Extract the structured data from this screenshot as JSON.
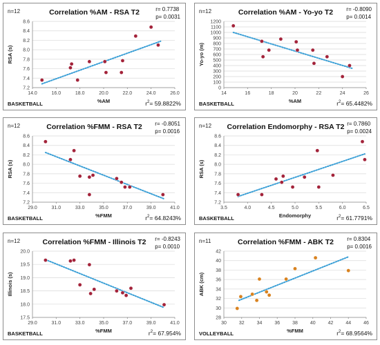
{
  "panels": [
    {
      "n_label": "n=12",
      "title": "Correlation %AM - RSA T2",
      "r_text": "r= 0.7738",
      "p_text": "p= 0.0031",
      "sport": "BASKETBALL",
      "r2_text": "59.8822%"
    },
    {
      "n_label": "n=12",
      "title": "Correlation %AM - Yo-yo T2",
      "r_text": "r= -0.8090",
      "p_text": "p= 0.0014",
      "sport": "BASKETBALL",
      "r2_text": "65.4482%"
    },
    {
      "n_label": "n=12",
      "title": "Correlation %FMM - RSA T2",
      "r_text": "r= -0.8051",
      "p_text": "p= 0.0016",
      "sport": "BASKETBALL",
      "r2_text": "64.8243%"
    },
    {
      "n_label": "n=12",
      "title": "Correlation Endomorphy - RSA T2",
      "r_text": "r= 0.7860",
      "p_text": "p= 0.0024",
      "sport": "BASKETBALL",
      "r2_text": "61.7791%"
    },
    {
      "n_label": "n=12",
      "title": "Correlation %FMM - Illinois T2",
      "r_text": "r= -0.8243",
      "p_text": "p= 0.0010",
      "sport": "BASKETBALL",
      "r2_text": "67.954%"
    },
    {
      "n_label": "n=11",
      "title": "Correlation %FMM - ABK T2",
      "r_text": "r= 0.8304",
      "p_text": "p= 0.0016",
      "sport": "VOLLEYBALL",
      "r2_text": "68.9564%"
    }
  ],
  "r2_prefix": "r",
  "r2_sup": "2",
  "r2_eq": "= ",
  "colors": {
    "basketball_points": "#a3233a",
    "volleyball_points": "#d9821f",
    "trendline": "#3a9fd6",
    "gridline": "#d9d9d9",
    "axis": "#8c8c8c"
  },
  "chart_data": [
    {
      "type": "scatter",
      "title": "Correlation %AM - RSA T2",
      "xlabel": "%AM",
      "ylabel": "RSA (s)",
      "xlim": [
        14,
        26
      ],
      "ylim": [
        7.2,
        8.6
      ],
      "xticks": [
        14,
        16,
        18,
        20,
        22,
        24,
        26
      ],
      "yticks": [
        7.2,
        7.4,
        7.6,
        7.8,
        8.0,
        8.2,
        8.4,
        8.6
      ],
      "tick_decimals": 1,
      "grid": "horizontal",
      "points": [
        [
          14.8,
          7.36
        ],
        [
          17.2,
          7.62
        ],
        [
          17.3,
          7.7
        ],
        [
          17.8,
          7.36
        ],
        [
          18.8,
          7.75
        ],
        [
          20.1,
          7.75
        ],
        [
          20.2,
          7.52
        ],
        [
          21.5,
          7.52
        ],
        [
          21.6,
          7.77
        ],
        [
          22.7,
          8.29
        ],
        [
          24.0,
          8.48
        ],
        [
          24.6,
          8.1
        ]
      ],
      "trend": [
        [
          14.8,
          7.28
        ],
        [
          24.8,
          8.18
        ]
      ],
      "point_color": "basketball_points"
    },
    {
      "type": "scatter",
      "title": "Correlation %AM - Yo-yo T2",
      "xlabel": "%AM",
      "ylabel": "Yo-yo (m)",
      "xlim": [
        14,
        26
      ],
      "ylim": [
        0,
        1200
      ],
      "xticks": [
        14,
        16,
        18,
        20,
        22,
        24,
        26
      ],
      "yticks": [
        0,
        100,
        200,
        300,
        400,
        500,
        600,
        700,
        800,
        900,
        1000,
        1100,
        1200
      ],
      "tick_decimals": 0,
      "grid": "horizontal",
      "points": [
        [
          14.8,
          1120
        ],
        [
          17.2,
          840
        ],
        [
          17.3,
          560
        ],
        [
          17.8,
          680
        ],
        [
          18.8,
          880
        ],
        [
          20.1,
          830
        ],
        [
          20.2,
          680
        ],
        [
          21.5,
          680
        ],
        [
          21.6,
          440
        ],
        [
          22.7,
          560
        ],
        [
          24.0,
          200
        ],
        [
          24.6,
          400
        ]
      ],
      "trend": [
        [
          14.8,
          1000
        ],
        [
          24.8,
          350
        ]
      ],
      "point_color": "basketball_points"
    },
    {
      "type": "scatter",
      "title": "Correlation %FMM - RSA T2",
      "xlabel": "%FMM",
      "ylabel": "RSA (s)",
      "xlim": [
        29,
        41
      ],
      "ylim": [
        7.2,
        8.6
      ],
      "xticks": [
        29,
        31,
        33,
        35,
        37,
        39,
        41
      ],
      "yticks": [
        7.2,
        7.4,
        7.6,
        7.8,
        8.0,
        8.2,
        8.4,
        8.6
      ],
      "tick_decimals": 1,
      "grid": "horizontal",
      "points": [
        [
          30.1,
          8.48
        ],
        [
          32.2,
          8.1
        ],
        [
          32.5,
          8.29
        ],
        [
          33.0,
          7.75
        ],
        [
          33.8,
          7.36
        ],
        [
          33.8,
          7.73
        ],
        [
          34.1,
          7.77
        ],
        [
          36.1,
          7.7
        ],
        [
          36.5,
          7.62
        ],
        [
          36.8,
          7.52
        ],
        [
          37.2,
          7.52
        ],
        [
          40.0,
          7.36
        ]
      ],
      "trend": [
        [
          30.1,
          8.25
        ],
        [
          40.1,
          7.27
        ]
      ],
      "point_color": "basketball_points"
    },
    {
      "type": "scatter",
      "title": "Correlation Endomorphy - RSA T2",
      "xlabel": "Endomorphy",
      "ylabel": "RSA (s)",
      "xlim": [
        3.5,
        6.5
      ],
      "ylim": [
        7.2,
        8.6
      ],
      "xticks": [
        3.5,
        4.0,
        4.5,
        5.0,
        5.5,
        6.0,
        6.5
      ],
      "yticks": [
        7.2,
        7.4,
        7.6,
        7.8,
        8.0,
        8.2,
        8.4,
        8.6
      ],
      "tick_decimals": 1,
      "grid": "horizontal",
      "points": [
        [
          3.8,
          7.36
        ],
        [
          4.3,
          7.36
        ],
        [
          4.6,
          7.69
        ],
        [
          4.72,
          7.62
        ],
        [
          4.75,
          7.75
        ],
        [
          4.95,
          7.52
        ],
        [
          5.2,
          7.73
        ],
        [
          5.47,
          8.29
        ],
        [
          5.5,
          7.52
        ],
        [
          5.8,
          7.77
        ],
        [
          6.42,
          8.48
        ],
        [
          6.47,
          8.1
        ]
      ],
      "trend": [
        [
          3.8,
          7.32
        ],
        [
          6.47,
          8.22
        ]
      ],
      "point_color": "basketball_points"
    },
    {
      "type": "scatter",
      "title": "Correlation %FMM - Illinois T2",
      "xlabel": "%FMM",
      "ylabel": "Illinois (s)",
      "xlim": [
        29,
        41
      ],
      "ylim": [
        17.5,
        20.0
      ],
      "xticks": [
        29,
        31,
        33,
        35,
        37,
        39,
        41
      ],
      "yticks": [
        17.5,
        18.0,
        18.5,
        19.0,
        19.5,
        20.0
      ],
      "tick_decimals": 1,
      "grid": "horizontal",
      "points": [
        [
          30.1,
          19.66
        ],
        [
          32.2,
          19.63
        ],
        [
          32.5,
          19.66
        ],
        [
          33.0,
          18.73
        ],
        [
          33.8,
          19.49
        ],
        [
          33.9,
          18.4
        ],
        [
          34.2,
          18.56
        ],
        [
          36.1,
          18.5
        ],
        [
          36.6,
          18.43
        ],
        [
          36.9,
          18.33
        ],
        [
          37.3,
          18.6
        ],
        [
          40.1,
          17.98
        ]
      ],
      "trend": [
        [
          30.1,
          19.68
        ],
        [
          40.1,
          17.87
        ]
      ],
      "point_color": "basketball_points"
    },
    {
      "type": "scatter",
      "title": "Correlation %FMM - ABK T2",
      "xlabel": "%FMM",
      "ylabel": "ABK (cm)",
      "xlim": [
        30,
        46
      ],
      "ylim": [
        28,
        42
      ],
      "xticks": [
        30,
        32,
        34,
        36,
        38,
        40,
        42,
        44,
        46
      ],
      "yticks": [
        28,
        30,
        32,
        34,
        36,
        38,
        40,
        42
      ],
      "tick_decimals": 0,
      "grid": "horizontal",
      "points": [
        [
          31.5,
          29.9
        ],
        [
          31.9,
          32.4
        ],
        [
          33.2,
          32.9
        ],
        [
          33.7,
          31.6
        ],
        [
          34.0,
          36.1
        ],
        [
          34.8,
          33.4
        ],
        [
          35.1,
          32.7
        ],
        [
          37.0,
          36.1
        ],
        [
          38.0,
          38.3
        ],
        [
          40.3,
          40.6
        ],
        [
          44.0,
          37.9
        ]
      ],
      "trend": [
        [
          31.7,
          31.6
        ],
        [
          44.0,
          40.8
        ]
      ],
      "point_color": "volleyball_points"
    }
  ]
}
